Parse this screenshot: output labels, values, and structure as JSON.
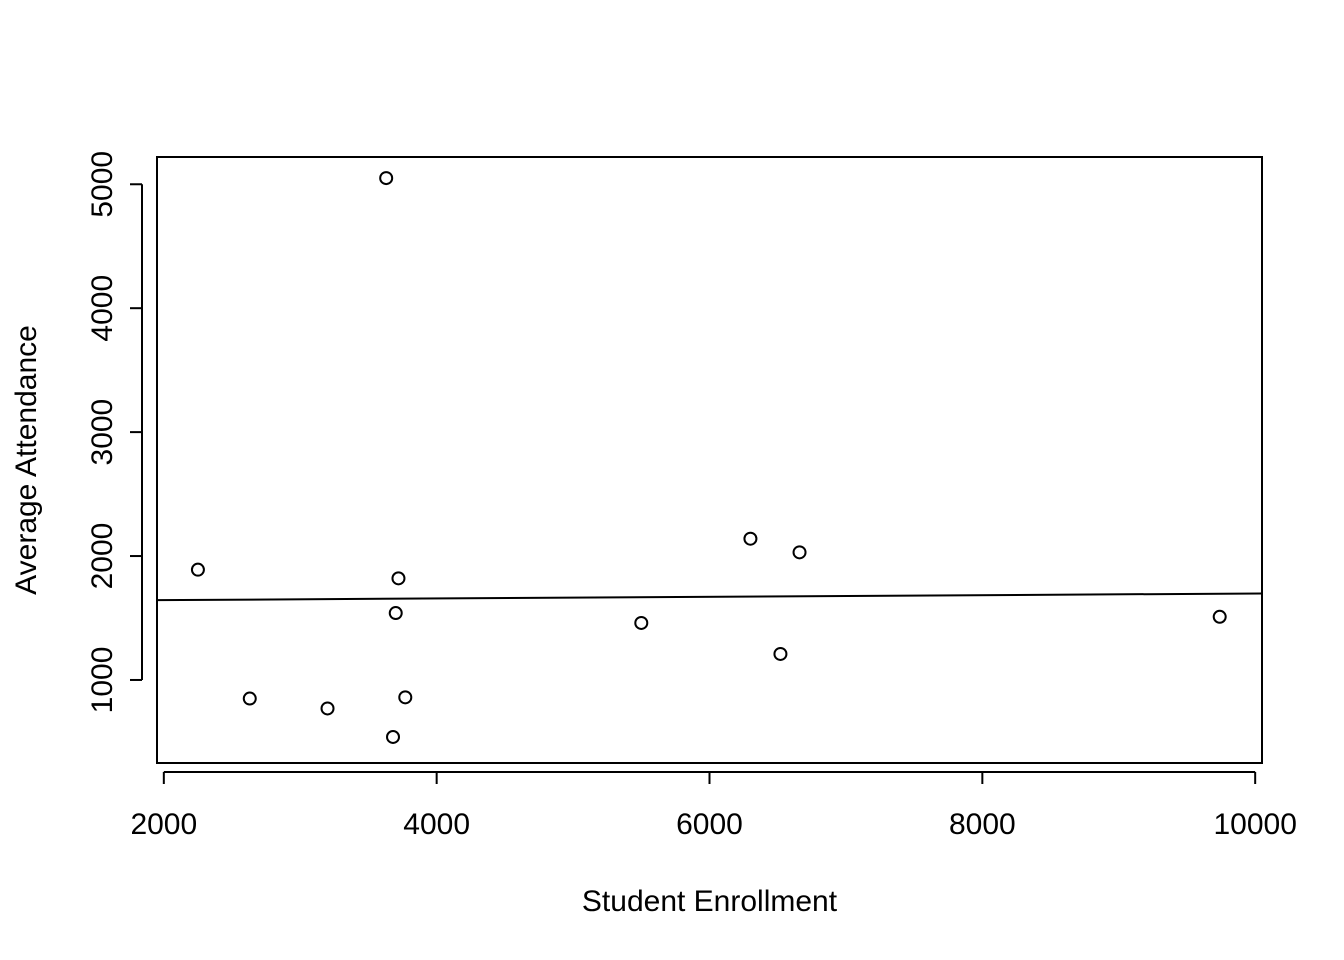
{
  "chart_data": {
    "type": "scatter",
    "title": "",
    "xlabel": "Student Enrollment",
    "ylabel": "Average Attendance",
    "xlim": [
      1950,
      10050
    ],
    "ylim": [
      330,
      5220
    ],
    "xticks": [
      2000,
      4000,
      6000,
      8000,
      10000
    ],
    "yticks": [
      1000,
      2000,
      3000,
      4000,
      5000
    ],
    "grid": false,
    "legend": "none",
    "point_style": "open-circle",
    "colors": {
      "points": "#000000",
      "line": "#000000",
      "frame": "#000000"
    },
    "points": [
      {
        "x": 2250,
        "y": 1890
      },
      {
        "x": 2630,
        "y": 850
      },
      {
        "x": 3200,
        "y": 770
      },
      {
        "x": 3630,
        "y": 5050
      },
      {
        "x": 3680,
        "y": 540
      },
      {
        "x": 3700,
        "y": 1540
      },
      {
        "x": 3720,
        "y": 1820
      },
      {
        "x": 3770,
        "y": 860
      },
      {
        "x": 5500,
        "y": 1460
      },
      {
        "x": 6300,
        "y": 2140
      },
      {
        "x": 6520,
        "y": 1210
      },
      {
        "x": 6660,
        "y": 2030
      },
      {
        "x": 9740,
        "y": 1510
      }
    ],
    "fit_line": {
      "x": [
        1950,
        10050
      ],
      "y": [
        1644,
        1698
      ]
    }
  }
}
